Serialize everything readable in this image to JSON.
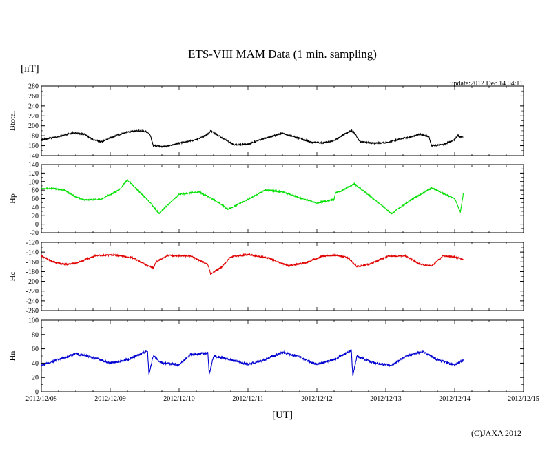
{
  "title": "ETS-VIII MAM Data (1 min. sampling)",
  "unit_label": "[nT]",
  "update_text": "update:2012 Dec 14 04:11",
  "xlabel": "[UT]",
  "copyright": "(C)JAXA 2012",
  "chart_data": {
    "type": "line",
    "x_ticks": [
      "2012/12/08",
      "2012/12/09",
      "2012/12/10",
      "2012/12/11",
      "2012/12/12",
      "2012/12/13",
      "2012/12/14",
      "2012/12/15"
    ],
    "xlim": [
      "2012/12/08 00:00",
      "2012/12/15 00:00"
    ],
    "panels": [
      {
        "name": "Btotal",
        "color": "#000000",
        "ylim": [
          140,
          280
        ],
        "y_ticks": [
          140,
          160,
          180,
          200,
          220,
          240,
          260,
          280
        ],
        "noise": 1.5,
        "x": [
          "12/08 00:00",
          "12/08 06:00",
          "12/08 11:00",
          "12/08 15:00",
          "12/08 18:00",
          "12/08 21:00",
          "12/09 01:00",
          "12/09 06:00",
          "12/09 10:00",
          "12/09 13:00",
          "12/09 14:00",
          "12/09 15:00",
          "12/09 19:00",
          "12/10 00:00",
          "12/10 06:00",
          "12/10 10:00",
          "12/10 11:00",
          "12/10 15:00",
          "12/10 19:00",
          "12/11 00:00",
          "12/11 06:00",
          "12/11 12:00",
          "12/11 18:00",
          "12/11 22:00",
          "12/12 02:00",
          "12/12 06:00",
          "12/12 10:00",
          "12/12 12:00",
          "12/12 13:00",
          "12/12 15:00",
          "12/12 19:00",
          "12/13 00:00",
          "12/13 04:00",
          "12/13 08:00",
          "12/13 12:00",
          "12/13 15:00",
          "12/13 16:00",
          "12/13 20:00",
          "12/14 00:00",
          "12/14 01:00",
          "12/14 03:00"
        ],
        "y": [
          172,
          178,
          186,
          183,
          172,
          168,
          178,
          188,
          190,
          188,
          180,
          160,
          158,
          165,
          172,
          183,
          190,
          176,
          162,
          163,
          175,
          185,
          175,
          167,
          166,
          170,
          185,
          190,
          186,
          168,
          165,
          166,
          172,
          177,
          183,
          178,
          160,
          162,
          172,
          180,
          176
        ]
      },
      {
        "name": "Hp",
        "color": "#00e000",
        "ylim": [
          -20,
          140
        ],
        "y_ticks": [
          -20,
          0,
          20,
          40,
          60,
          80,
          100,
          120,
          140
        ],
        "noise": 1.5,
        "x": [
          "12/08 00:00",
          "12/08 04:00",
          "12/08 08:00",
          "12/08 12:00",
          "12/08 15:00",
          "12/08 21:00",
          "12/09 03:00",
          "12/09 06:00",
          "12/09 14:00",
          "12/09 17:00",
          "12/09 18:00",
          "12/10 00:00",
          "12/10 07:00",
          "12/10 14:00",
          "12/10 17:00",
          "12/11 00:00",
          "12/11 06:00",
          "12/11 12:00",
          "12/11 18:00",
          "12/12 00:00",
          "12/12 06:00",
          "12/12 06:30",
          "12/12 08:00",
          "12/12 13:00",
          "12/12 14:00",
          "12/12 18:00",
          "12/13 02:00",
          "12/13 09:00",
          "12/13 16:00",
          "12/14 00:00",
          "12/14 02:00",
          "12/14 03:00"
        ],
        "y": [
          84,
          84,
          80,
          64,
          57,
          59,
          80,
          104,
          50,
          25,
          32,
          70,
          76,
          50,
          35,
          58,
          80,
          76,
          62,
          50,
          58,
          74,
          76,
          95,
          90,
          69,
          25,
          58,
          85,
          60,
          28,
          72
        ]
      },
      {
        "name": "Hc",
        "color": "#e00000",
        "ylim": [
          -260,
          -120
        ],
        "y_ticks": [
          -120,
          -140,
          -160,
          -180,
          -200,
          -220,
          -240,
          -260
        ],
        "noise": 1.5,
        "x": [
          "12/08 00:00",
          "12/08 04:00",
          "12/08 08:00",
          "12/08 12:00",
          "12/08 19:00",
          "12/09 02:00",
          "12/09 08:00",
          "12/09 13:00",
          "12/09 15:00",
          "12/09 16:00",
          "12/09 20:00",
          "12/10 04:00",
          "12/10 10:00",
          "12/10 11:00",
          "12/10 15:00",
          "12/10 18:00",
          "12/11 00:00",
          "12/11 07:00",
          "12/11 14:00",
          "12/11 20:00",
          "12/12 02:00",
          "12/12 07:00",
          "12/12 11:00",
          "12/12 14:00",
          "12/12 18:00",
          "12/13 01:00",
          "12/13 07:00",
          "12/13 12:00",
          "12/13 16:00",
          "12/13 20:00",
          "12/14 00:00",
          "12/14 03:00"
        ],
        "y": [
          -148,
          -160,
          -165,
          -163,
          -147,
          -146,
          -152,
          -168,
          -172,
          -160,
          -147,
          -148,
          -165,
          -185,
          -170,
          -150,
          -145,
          -152,
          -168,
          -162,
          -148,
          -146,
          -152,
          -170,
          -165,
          -148,
          -148,
          -165,
          -168,
          -148,
          -150,
          -155
        ]
      },
      {
        "name": "Hn",
        "color": "#0000d0",
        "ylim": [
          0,
          100
        ],
        "y_ticks": [
          0,
          20,
          40,
          60,
          80,
          100
        ],
        "noise": 1.5,
        "x": [
          "12/08 00:00",
          "12/08 06:00",
          "12/08 12:00",
          "12/08 18:00",
          "12/09 00:00",
          "12/09 06:00",
          "12/09 13:00",
          "12/09 13:30",
          "12/09 15:00",
          "12/09 18:00",
          "12/10 00:00",
          "12/10 04:00",
          "12/10 10:00",
          "12/10 10:30",
          "12/10 12:00",
          "12/10 18:00",
          "12/11 00:00",
          "12/11 06:00",
          "12/11 12:00",
          "12/11 17:00",
          "12/12 00:00",
          "12/12 06:00",
          "12/12 12:00",
          "12/12 12:30",
          "12/12 14:00",
          "12/12 20:00",
          "12/13 02:00",
          "12/13 07:00",
          "12/13 13:00",
          "12/13 18:00",
          "12/14 00:00",
          "12/14 03:00"
        ],
        "y": [
          37,
          45,
          53,
          48,
          40,
          45,
          57,
          25,
          50,
          40,
          38,
          52,
          54,
          25,
          50,
          45,
          38,
          45,
          55,
          50,
          38,
          45,
          58,
          22,
          50,
          40,
          37,
          50,
          56,
          45,
          37,
          44
        ]
      }
    ]
  }
}
